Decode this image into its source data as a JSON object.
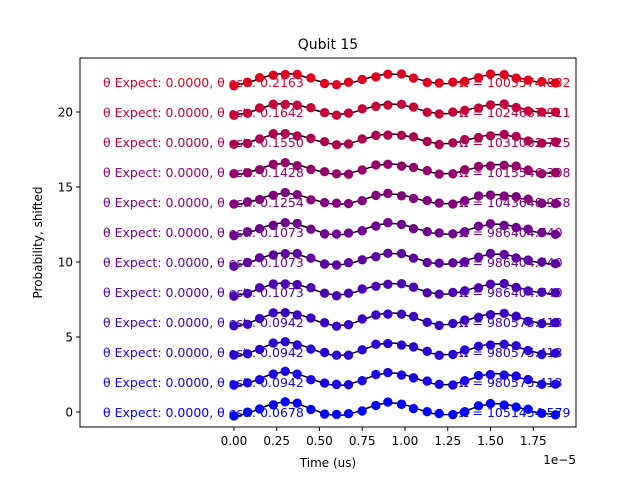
{
  "chart_data": {
    "type": "scatter",
    "title": "Qubit 15",
    "xlabel": "Time (us)",
    "ylabel": "Probability, shifted",
    "x_offset_label": "1e−5",
    "xlim": [
      -9e-06,
      2e-05
    ],
    "ylim": [
      -1.0,
      23.6
    ],
    "xticks": [
      0,
      2.5e-06,
      5e-06,
      7.5e-06,
      1e-05,
      1.25e-05,
      1.5e-05,
      1.75e-05
    ],
    "xtick_labels": [
      "0.00",
      "0.25",
      "0.50",
      "0.75",
      "1.00",
      "1.25",
      "1.50",
      "1.75"
    ],
    "yticks": [
      0,
      5,
      10,
      15,
      20
    ],
    "ytick_labels": [
      "0",
      "5",
      "10",
      "15",
      "20"
    ],
    "grid": false,
    "x": [
      0,
      8e-07,
      1.5e-06,
      2.3e-06,
      3e-06,
      3.7e-06,
      4.5e-06,
      5.3e-06,
      6e-06,
      6.7e-06,
      7.5e-06,
      8.3e-06,
      9e-06,
      9.8e-06,
      1.05e-05,
      1.13e-05,
      1.2e-05,
      1.28e-05,
      1.35e-05,
      1.43e-05,
      1.5e-05,
      1.58e-05,
      1.65e-05,
      1.72e-05,
      1.8e-05,
      1.88e-05
    ],
    "series": [
      {
        "offset": 0,
        "color": "#0000ff",
        "theta_expect": "0.0000",
        "theta_est": "0.0678",
        "omega": "1051454.579",
        "amp": 0.55
      },
      {
        "offset": 2,
        "color": "#1a00e5",
        "theta_expect": "0.0000",
        "theta_est": "0.0942",
        "omega": "980575.413",
        "amp": 0.55
      },
      {
        "offset": 4,
        "color": "#2a00d4",
        "theta_expect": "0.0000",
        "theta_est": "0.0942",
        "omega": "980575.413",
        "amp": 0.55
      },
      {
        "offset": 6,
        "color": "#3a00c4",
        "theta_expect": "0.0000",
        "theta_est": "0.0942",
        "omega": "980575.413",
        "amp": 0.55
      },
      {
        "offset": 8,
        "color": "#4d00b2",
        "theta_expect": "0.0000",
        "theta_est": "0.1073",
        "omega": "986404.740",
        "amp": 0.5
      },
      {
        "offset": 10,
        "color": "#5f00a0",
        "theta_expect": "0.0000",
        "theta_est": "0.1073",
        "omega": "986404.740",
        "amp": 0.5
      },
      {
        "offset": 12,
        "color": "#70008f",
        "theta_expect": "0.0000",
        "theta_est": "0.1073",
        "omega": "986404.740",
        "amp": 0.5
      },
      {
        "offset": 14,
        "color": "#82007d",
        "theta_expect": "0.0000",
        "theta_est": "0.1254",
        "omega": "1043648.958",
        "amp": 0.45
      },
      {
        "offset": 16,
        "color": "#95006a",
        "theta_expect": "0.0000",
        "theta_est": "0.1428",
        "omega": "1015546.308",
        "amp": 0.45
      },
      {
        "offset": 18,
        "color": "#ad0052",
        "theta_expect": "0.0000",
        "theta_est": "0.1550",
        "omega": "1031062.725",
        "amp": 0.45
      },
      {
        "offset": 20,
        "color": "#c60039",
        "theta_expect": "0.0000",
        "theta_est": "0.1642",
        "omega": "1024687.911",
        "amp": 0.45
      },
      {
        "offset": 22,
        "color": "#e0001f",
        "theta_expect": "0.0000",
        "theta_est": "0.2163",
        "omega": "1003574.882",
        "amp": 0.45
      }
    ]
  }
}
